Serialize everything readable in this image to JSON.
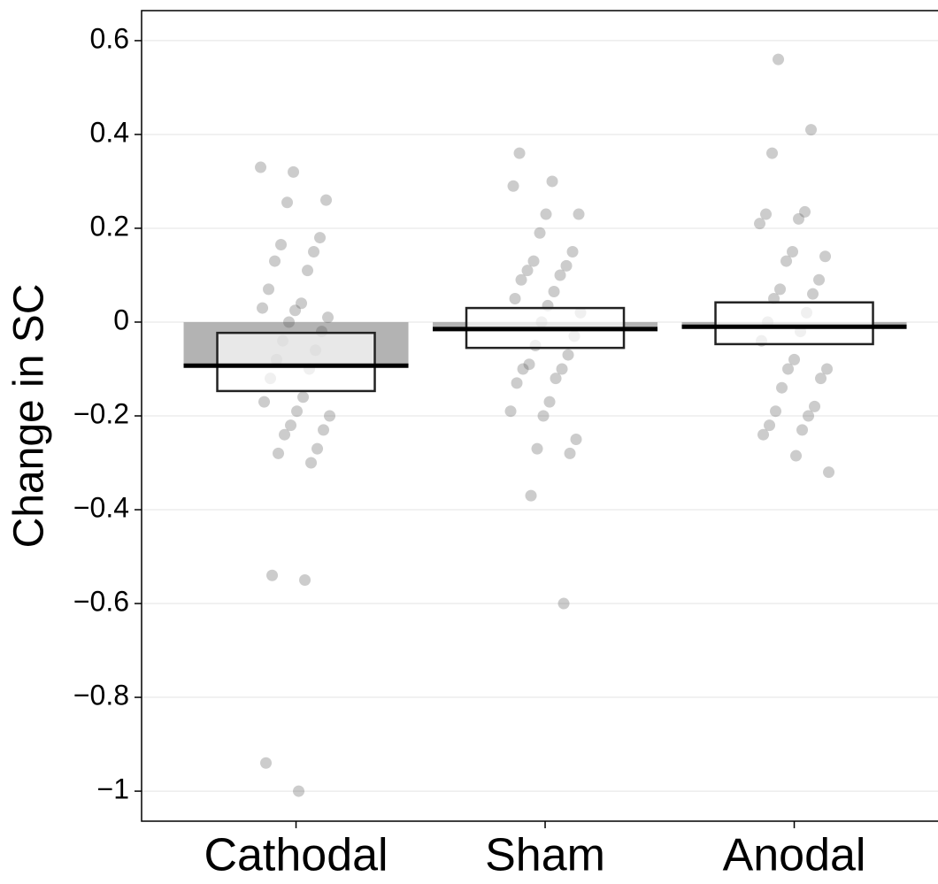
{
  "chart_data": {
    "type": "pirate",
    "y_label": "Change in SC",
    "categories": [
      "Cathodal",
      "Sham",
      "Anodal"
    ],
    "means": [
      -0.093,
      -0.015,
      -0.01
    ],
    "box_lower": [
      -0.147,
      -0.055,
      -0.047
    ],
    "box_upper": [
      -0.023,
      0.03,
      0.042
    ],
    "bar_color": "#b3b3b3",
    "point_color": "#555555",
    "points": [
      [
        0.33,
        0.32,
        0.26,
        0.255,
        0.18,
        0.165,
        0.15,
        0.13,
        0.11,
        0.07,
        0.04,
        0.03,
        0.025,
        0.01,
        0.0,
        -0.02,
        -0.04,
        -0.06,
        -0.08,
        -0.1,
        -0.12,
        -0.16,
        -0.17,
        -0.19,
        -0.2,
        -0.22,
        -0.23,
        -0.24,
        -0.27,
        -0.28,
        -0.3,
        -0.54,
        -0.55,
        -0.94,
        -1.0
      ],
      [
        0.36,
        0.3,
        0.29,
        0.23,
        0.23,
        0.19,
        0.15,
        0.13,
        0.12,
        0.11,
        0.1,
        0.09,
        0.065,
        0.05,
        0.035,
        0.02,
        0.0,
        -0.03,
        -0.05,
        -0.07,
        -0.09,
        -0.1,
        -0.1,
        -0.12,
        -0.13,
        -0.17,
        -0.19,
        -0.2,
        -0.25,
        -0.27,
        -0.28,
        -0.37,
        -0.6
      ],
      [
        0.56,
        0.41,
        0.36,
        0.235,
        0.23,
        0.22,
        0.21,
        0.15,
        0.14,
        0.13,
        0.09,
        0.07,
        0.06,
        0.05,
        0.02,
        0.0,
        -0.02,
        -0.04,
        -0.08,
        -0.1,
        -0.1,
        -0.12,
        -0.14,
        -0.18,
        -0.19,
        -0.2,
        -0.22,
        -0.23,
        -0.24,
        -0.285,
        -0.32
      ]
    ],
    "ylim": [
      -1.064,
      0.664
    ],
    "yticks": [
      {
        "value": -1,
        "label": "−1"
      },
      {
        "value": -0.8,
        "label": "−0.8"
      },
      {
        "value": -0.6,
        "label": "−0.6"
      },
      {
        "value": -0.4,
        "label": "−0.4"
      },
      {
        "value": -0.2,
        "label": "−0.2"
      },
      0,
      0.2,
      0.4,
      0.6
    ],
    "grid": true
  }
}
